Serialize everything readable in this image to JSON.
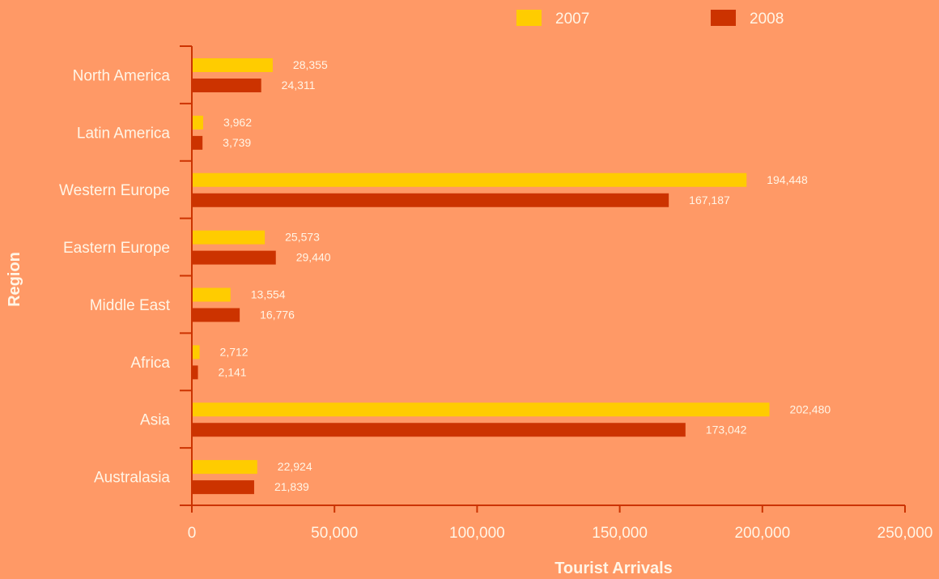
{
  "chart_data": {
    "type": "bar",
    "orientation": "horizontal",
    "categories": [
      "North America",
      "Latin America",
      "Western Europe",
      "Eastern Europe",
      "Middle East",
      "Africa",
      "Asia",
      "Australasia"
    ],
    "series": [
      {
        "name": "2007",
        "color": "#FFCC00",
        "values": [
          28355,
          3962,
          194448,
          25573,
          13554,
          2712,
          202480,
          22924
        ]
      },
      {
        "name": "2008",
        "color": "#CC3300",
        "values": [
          24311,
          3739,
          167187,
          29440,
          16776,
          2141,
          173042,
          21839
        ]
      }
    ],
    "data_labels": [
      [
        "28,355",
        "3,962",
        "194,448",
        "25,573",
        "13,554",
        "2,712",
        "202,480",
        "22,924"
      ],
      [
        "24,311",
        "3,739",
        "167,187",
        "29,440",
        "16,776",
        "2,141",
        "173,042",
        "21,839"
      ]
    ],
    "xlabel": "Tourist Arrivals",
    "ylabel": "Region",
    "xlim": [
      0,
      250000
    ],
    "xticks": [
      0,
      50000,
      100000,
      150000,
      200000,
      250000
    ],
    "xtick_labels": [
      "0",
      "50,000",
      "100,000",
      "150,000",
      "200,000",
      "250,000"
    ],
    "legend_position": "top-right",
    "grid": false,
    "axis_color": "#CC3300"
  }
}
